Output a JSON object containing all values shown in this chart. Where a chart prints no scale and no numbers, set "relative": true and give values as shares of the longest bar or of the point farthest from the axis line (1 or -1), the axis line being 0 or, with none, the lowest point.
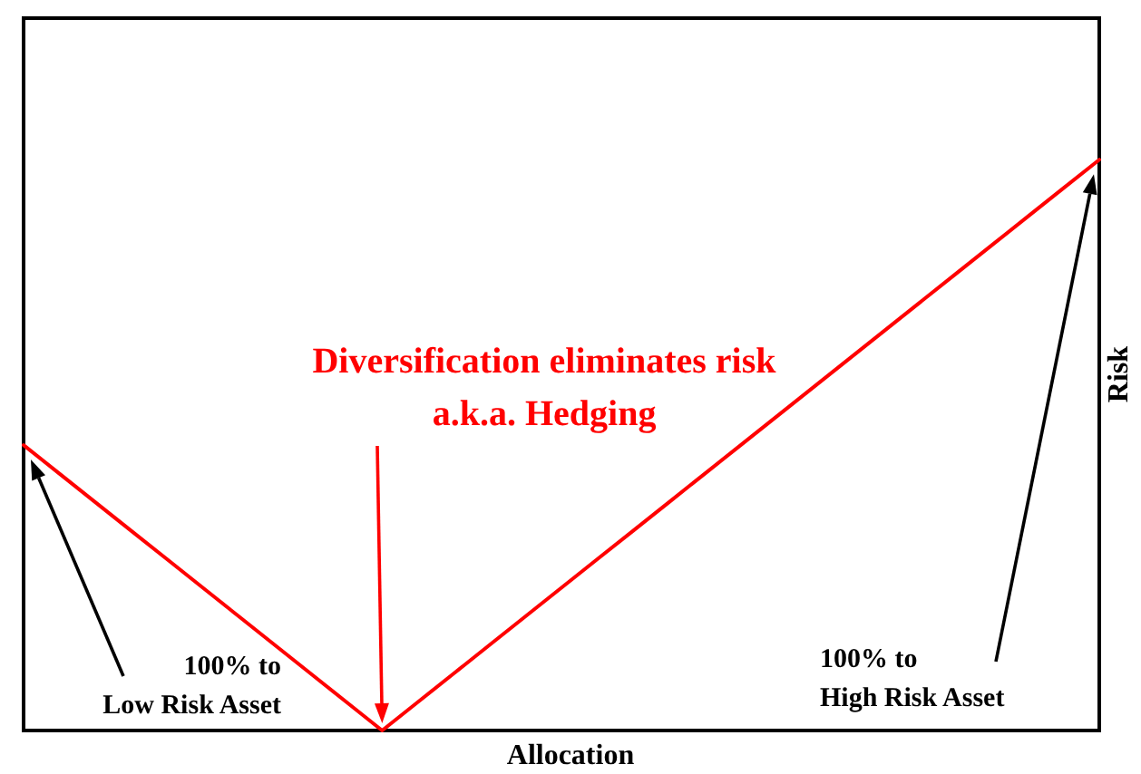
{
  "chart_data": {
    "type": "line",
    "relative": true,
    "xlabel": "Allocation",
    "ylabel": "Risk",
    "categories": [
      null,
      null,
      null,
      null,
      null,
      null,
      null,
      null,
      null,
      null,
      null,
      null,
      null,
      null,
      null,
      null,
      null,
      null,
      null,
      null,
      null,
      null,
      null,
      null,
      null,
      null,
      null,
      null,
      null,
      null,
      null
    ],
    "series": [
      {
        "color": "#ff0000",
        "values": [
          0.5,
          0.45,
          0.4,
          0.35,
          0.3,
          0.25,
          0.2,
          0.15,
          0.1,
          0.05,
          0,
          0.05,
          0.1,
          0.15,
          0.2,
          0.25,
          0.3,
          0.35,
          0.4,
          0.45,
          0.5,
          0.55,
          0.6,
          0.65,
          0.7,
          0.75,
          0.8,
          0.85,
          0.9,
          0.95,
          1
        ]
      }
    ],
    "annotations": [
      "Diversification eliminates risk\na.k.a. Hedging",
      "100% to\nLow Risk Asset",
      "100% to\nHigh Risk Asset"
    ],
    "grid": false,
    "marker": "none",
    "line_style": "solid"
  }
}
